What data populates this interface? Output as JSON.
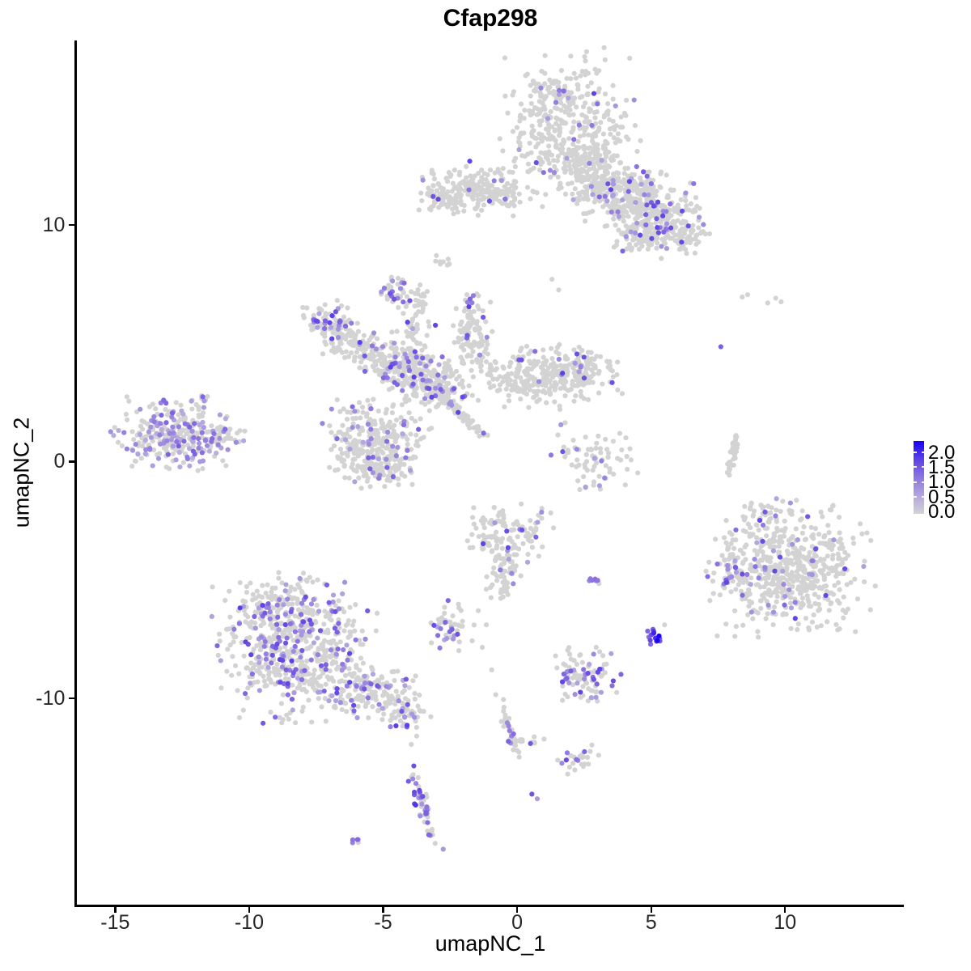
{
  "chart_data": {
    "type": "scatter",
    "title": "Cfap298",
    "xlabel": "umapNC_1",
    "ylabel": "umapNC_2",
    "xlim": [
      -16.43,
      14.43
    ],
    "ylim": [
      -18.72,
      17.79
    ],
    "x_ticks": [
      "-15",
      "-10",
      "-5",
      "0",
      "5",
      "10"
    ],
    "x_tick_values": [
      -15,
      -10,
      -5,
      0,
      5,
      10
    ],
    "y_ticks": [
      "-10",
      "0",
      "10"
    ],
    "y_tick_values": [
      -10,
      0,
      10
    ],
    "grid": false,
    "background": "#FFFFFF",
    "axis_color": "#000000",
    "axis_text_color": "#262626",
    "point_radius": 3.1,
    "base_point_color": "#D3D3D3",
    "color_stops": [
      "#D3D3D3",
      "#B2A7DE",
      "#8E74E0",
      "#5E3FE6",
      "#1402F8"
    ],
    "legend": {
      "labels": [
        "2.0",
        "1.5",
        "1.0",
        "0.5",
        "0.0"
      ],
      "tick_values": [
        2.0,
        1.5,
        1.0,
        0.5,
        0.0
      ],
      "bar_tick_values": [
        2.0,
        1.5,
        1.0,
        0.5
      ],
      "vmin": 0.0,
      "vmax": 2.0,
      "gradient_low": "#D3D3D3",
      "gradient_high": "#1402F8",
      "position": "right"
    },
    "clusters": [
      {
        "x": 2.0,
        "y": 13.9,
        "sx": 1.15,
        "sy": 1.5,
        "n": 420,
        "frac": 0.055
      },
      {
        "x": 1.5,
        "y": 15.5,
        "sx": 0.45,
        "sy": 0.3,
        "n": 40,
        "frac": 0.05
      },
      {
        "x": 2.75,
        "y": 12.1,
        "sx": 0.6,
        "sy": 0.55,
        "n": 110,
        "frac": 0.08
      },
      {
        "x": 3.8,
        "y": 11.3,
        "sx": 0.75,
        "sy": 0.6,
        "n": 150,
        "frac": 0.12
      },
      {
        "x": 4.9,
        "y": 10.9,
        "sx": 0.8,
        "sy": 0.55,
        "n": 160,
        "frac": 0.13
      },
      {
        "x": 5.6,
        "y": 10.1,
        "sx": 0.65,
        "sy": 0.5,
        "n": 110,
        "frac": 0.14
      },
      {
        "x": 4.7,
        "y": 9.45,
        "sx": 0.5,
        "sy": 0.4,
        "n": 70,
        "frac": 0.12
      },
      {
        "x": 6.3,
        "y": 9.5,
        "sx": 0.45,
        "sy": 0.35,
        "n": 45,
        "frac": 0.12
      },
      {
        "x": -1.6,
        "y": 11.5,
        "sx": 0.95,
        "sy": 0.5,
        "n": 200,
        "frac": 0.06
      },
      {
        "x": -3.0,
        "y": 11.1,
        "sx": 0.35,
        "sy": 0.3,
        "n": 40,
        "frac": 0.05
      },
      {
        "x": -0.3,
        "y": 11.3,
        "sx": 0.55,
        "sy": 0.12,
        "n": 22,
        "frac": 0.0
      },
      {
        "x": -2.85,
        "y": 8.45,
        "sx": 0.18,
        "sy": 0.12,
        "n": 7,
        "frac": 0.0
      },
      {
        "x": -4.6,
        "y": 7.3,
        "sx": 0.3,
        "sy": 0.28,
        "n": 34,
        "frac": 0.45,
        "tmin": 0.3,
        "tmax": 0.8
      },
      {
        "x": -7.05,
        "y": 5.8,
        "sx": 0.5,
        "sy": 0.45,
        "n": 90,
        "frac": 0.3
      },
      {
        "x": -6.3,
        "y": 5.0,
        "sx": 0.45,
        "sy": 0.4,
        "n": 70,
        "frac": 0.12
      },
      {
        "x": -5.1,
        "y": 4.5,
        "sx": 0.55,
        "sy": 0.45,
        "n": 95,
        "frac": 0.15
      },
      {
        "x": -4.05,
        "y": 3.8,
        "sx": 0.6,
        "sy": 0.55,
        "n": 170,
        "frac": 0.16
      },
      {
        "x": -3.0,
        "y": 3.3,
        "sx": 0.6,
        "sy": 0.5,
        "n": 140,
        "frac": 0.1
      },
      {
        "x": -3.75,
        "y": 5.6,
        "sx": 0.3,
        "sy": 0.8,
        "n": 55,
        "frac": 0.08
      },
      {
        "x": -3.9,
        "y": 6.8,
        "sx": 0.3,
        "sy": 0.3,
        "n": 14,
        "frac": 0.1
      },
      {
        "x": -1.65,
        "y": 5.4,
        "sx": 0.35,
        "sy": 0.95,
        "n": 110,
        "frac": 0.1
      },
      {
        "x": 0.5,
        "y": 3.6,
        "sx": 0.95,
        "sy": 0.6,
        "n": 230,
        "frac": 0.04
      },
      {
        "x": 2.3,
        "y": 3.8,
        "sx": 0.75,
        "sy": 0.55,
        "n": 130,
        "frac": 0.04
      },
      {
        "x": -2.15,
        "y": 2.05,
        "sx": 0.6,
        "sy": 0.09,
        "n": 85,
        "frac": 0.08,
        "rot": -47
      },
      {
        "x": -5.25,
        "y": 0.9,
        "sx": 0.9,
        "sy": 0.75,
        "n": 280,
        "frac": 0.13
      },
      {
        "x": -5.1,
        "y": -0.3,
        "sx": 0.6,
        "sy": 0.35,
        "n": 80,
        "frac": 0.1
      },
      {
        "x": -12.8,
        "y": 1.1,
        "sx": 1.0,
        "sy": 0.72,
        "n": 280,
        "frac": 0.38,
        "tmin": 0.2,
        "tmax": 0.6
      },
      {
        "x": -11.0,
        "y": 1.05,
        "sx": 0.4,
        "sy": 0.25,
        "n": 40,
        "frac": 0.3,
        "tmin": 0.2,
        "tmax": 0.6
      },
      {
        "x": -11.8,
        "y": 2.5,
        "sx": 0.25,
        "sy": 0.2,
        "n": 10,
        "frac": 0.4,
        "tmin": 0.25,
        "tmax": 0.6
      },
      {
        "x": 3.05,
        "y": 0.2,
        "sx": 0.8,
        "sy": 0.65,
        "n": 75,
        "frac": 0.1
      },
      {
        "x": 8.05,
        "y": 0.35,
        "sx": 0.5,
        "sy": 0.08,
        "n": 40,
        "frac": 0.03,
        "rot": 79
      },
      {
        "x": 10.2,
        "y": -4.5,
        "sx": 1.35,
        "sy": 1.25,
        "n": 560,
        "frac": 0.07
      },
      {
        "x": 8.05,
        "y": -4.8,
        "sx": 0.32,
        "sy": 0.3,
        "n": 30,
        "frac": 0.3
      },
      {
        "x": 9.2,
        "y": -2.2,
        "sx": 0.4,
        "sy": 0.35,
        "n": 30,
        "frac": 0.08
      },
      {
        "x": -0.35,
        "y": -3.0,
        "sx": 0.8,
        "sy": 0.6,
        "n": 120,
        "frac": 0.12
      },
      {
        "x": -0.5,
        "y": -4.6,
        "sx": 0.38,
        "sy": 0.7,
        "n": 60,
        "frac": 0.1
      },
      {
        "x": 2.9,
        "y": -5.0,
        "sx": 0.16,
        "sy": 0.1,
        "n": 7,
        "frac": 0.5
      },
      {
        "x": -2.5,
        "y": -6.9,
        "sx": 0.42,
        "sy": 0.5,
        "n": 48,
        "frac": 0.3
      },
      {
        "x": -8.3,
        "y": -7.9,
        "sx": 1.3,
        "sy": 1.35,
        "n": 580,
        "frac": 0.22
      },
      {
        "x": -8.9,
        "y": -6.0,
        "sx": 0.6,
        "sy": 0.45,
        "n": 90,
        "frac": 0.2
      },
      {
        "x": -5.7,
        "y": -9.7,
        "sx": 0.9,
        "sy": 0.5,
        "n": 140,
        "frac": 0.2
      },
      {
        "x": -4.3,
        "y": -10.55,
        "sx": 0.5,
        "sy": 0.4,
        "n": 60,
        "frac": 0.28
      },
      {
        "x": 5.05,
        "y": -7.4,
        "sx": 0.2,
        "sy": 0.2,
        "n": 14,
        "frac": 1.0,
        "tmin": 0.45,
        "tmax": 1.0,
        "pow": 0.7
      },
      {
        "x": 2.5,
        "y": -9.2,
        "sx": 0.6,
        "sy": 0.6,
        "n": 95,
        "frac": 0.35
      },
      {
        "x": -0.3,
        "y": -11.35,
        "sx": 0.55,
        "sy": 0.1,
        "n": 36,
        "frac": 0.3,
        "rot": -71
      },
      {
        "x": 0.55,
        "y": -11.8,
        "sx": 0.45,
        "sy": 0.08,
        "n": 12,
        "frac": 0.4
      },
      {
        "x": 2.3,
        "y": -12.6,
        "sx": 0.4,
        "sy": 0.3,
        "n": 26,
        "frac": 0.2
      },
      {
        "x": -3.5,
        "y": -14.6,
        "sx": 0.85,
        "sy": 0.12,
        "n": 52,
        "frac": 0.5,
        "rot": -73,
        "tmin": 0.3,
        "tmax": 0.8
      },
      {
        "x": -6.1,
        "y": -16.1,
        "sx": 0.14,
        "sy": 0.1,
        "n": 5,
        "frac": 0.7,
        "tmin": 0.4,
        "tmax": 0.7
      }
    ],
    "singles": [
      [
        8.4,
        6.95,
        0
      ],
      [
        8.6,
        7.05,
        0
      ],
      [
        9.35,
        6.7,
        0
      ],
      [
        9.65,
        6.9,
        0
      ],
      [
        9.85,
        6.75,
        0
      ],
      [
        7.6,
        4.85,
        0.6
      ],
      [
        -1.45,
        -6.3,
        0
      ],
      [
        -1.15,
        -6.9,
        0
      ],
      [
        -1.3,
        -7.85,
        0
      ],
      [
        -0.95,
        -8.8,
        0
      ],
      [
        -0.8,
        -9.85,
        0
      ],
      [
        -3.75,
        -11.6,
        0
      ],
      [
        -3.95,
        -11.95,
        0
      ],
      [
        0.55,
        -14.05,
        0.65
      ],
      [
        0.75,
        -14.25,
        0.3
      ],
      [
        3.2,
        -8.2,
        0
      ],
      [
        2.95,
        -7.85,
        0
      ],
      [
        1.3,
        7.7,
        0
      ],
      [
        1.55,
        7.25,
        0
      ],
      [
        -2.6,
        8.3,
        0
      ],
      [
        5.5,
        -6.9,
        0
      ]
    ]
  }
}
